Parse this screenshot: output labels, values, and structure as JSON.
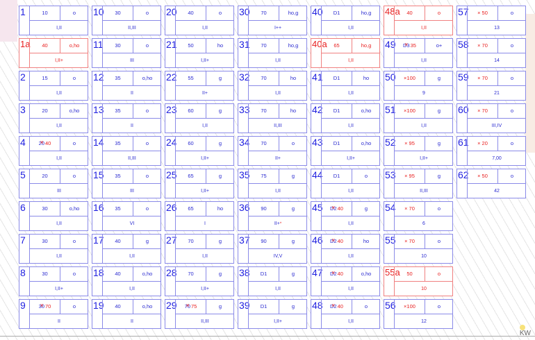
{
  "columns": [
    [
      {
        "num": "1",
        "val": "10",
        "type": "o",
        "cls": "I,II"
      },
      {
        "num": "1a",
        "val": "40",
        "type": "o,ho",
        "cls": "I,II+",
        "red": true
      },
      {
        "num": "2",
        "val": "15",
        "type": "o",
        "cls": "I,II"
      },
      {
        "num": "3",
        "val": "20",
        "type": "o,ho",
        "cls": "I,II"
      },
      {
        "num": "4",
        "old": "20",
        "val": "40",
        "type": "o",
        "cls": "I,II"
      },
      {
        "num": "5",
        "val": "20",
        "type": "o",
        "cls": "III"
      },
      {
        "num": "6",
        "val": "30",
        "type": "o,ho",
        "cls": "I,II"
      },
      {
        "num": "7",
        "val": "30",
        "type": "o",
        "cls": "I,II"
      },
      {
        "num": "8",
        "val": "30",
        "type": "o",
        "cls": "I,II+"
      },
      {
        "num": "9",
        "old": "30",
        "val": "70",
        "type": "o",
        "cls": "II"
      }
    ],
    [
      {
        "num": "10",
        "val": "30",
        "type": "o",
        "cls": "II,III"
      },
      {
        "num": "11",
        "val": "30",
        "type": "o",
        "cls": "III"
      },
      {
        "num": "12",
        "val": "35",
        "type": "o,ho",
        "cls": "II"
      },
      {
        "num": "13",
        "val": "35",
        "type": "o",
        "cls": "II"
      },
      {
        "num": "14",
        "val": "35",
        "type": "o",
        "cls": "II,III"
      },
      {
        "num": "15",
        "val": "35",
        "type": "o",
        "cls": "III"
      },
      {
        "num": "16",
        "val": "35",
        "type": "o",
        "cls": "VI"
      },
      {
        "num": "17",
        "val": "40",
        "type": "g",
        "cls": "I,II"
      },
      {
        "num": "18",
        "val": "40",
        "type": "o,ho",
        "cls": "I,II"
      },
      {
        "num": "19",
        "val": "40",
        "type": "o,ho",
        "cls": "II"
      }
    ],
    [
      {
        "num": "20",
        "val": "40",
        "type": "o",
        "cls": "I,II"
      },
      {
        "num": "21",
        "val": "50",
        "type": "ho",
        "cls": "I,II+"
      },
      {
        "num": "22",
        "val": "55",
        "type": "g",
        "cls": "II+"
      },
      {
        "num": "23",
        "val": "60",
        "type": "g",
        "cls": "I,II"
      },
      {
        "num": "24",
        "val": "60",
        "type": "g",
        "cls": "I,II+"
      },
      {
        "num": "25",
        "val": "65",
        "type": "g",
        "cls": "I,II+"
      },
      {
        "num": "26",
        "val": "65",
        "type": "ho",
        "cls": "I"
      },
      {
        "num": "27",
        "val": "70",
        "type": "g",
        "cls": "I,II"
      },
      {
        "num": "28",
        "val": "70",
        "type": "g",
        "cls": "I,II+"
      },
      {
        "num": "29",
        "old": "70",
        "val": "75",
        "type": "g",
        "cls": "II,III"
      }
    ],
    [
      {
        "num": "30",
        "val": "70",
        "type": "ho,g",
        "cls": "I++"
      },
      {
        "num": "31",
        "val": "70",
        "type": "ho,g",
        "cls": "I,II"
      },
      {
        "num": "32",
        "val": "70",
        "type": "ho",
        "cls": "I,II"
      },
      {
        "num": "33",
        "val": "70",
        "type": "ho",
        "cls": "II,III"
      },
      {
        "num": "34",
        "val": "70",
        "type": "o",
        "cls": "II+"
      },
      {
        "num": "35",
        "val": "75",
        "type": "g",
        "cls": "I,II"
      },
      {
        "num": "36",
        "val": "90",
        "type": "g",
        "cls": "II+",
        "mark": "*"
      },
      {
        "num": "37",
        "val": "90",
        "type": "g",
        "cls": "IV,V"
      },
      {
        "num": "38",
        "val": "D1",
        "type": "g",
        "cls": "I,II"
      },
      {
        "num": "39",
        "val": "D1",
        "type": "g",
        "cls": "I,II+"
      }
    ],
    [
      {
        "num": "40",
        "val": "D1",
        "type": "ho,g",
        "cls": "I,II"
      },
      {
        "num": "40a",
        "val": "65",
        "type": "ho,g",
        "cls": "I,II",
        "red": true
      },
      {
        "num": "41",
        "val": "D1",
        "type": "ho",
        "cls": "I,II"
      },
      {
        "num": "42",
        "val": "D1",
        "type": "o,ho",
        "cls": "I,II"
      },
      {
        "num": "43",
        "val": "D1",
        "type": "o,ho",
        "cls": "I,II+"
      },
      {
        "num": "44",
        "val": "D1",
        "type": "o",
        "cls": "I,II"
      },
      {
        "num": "45",
        "old": "D2",
        "val": "40",
        "type": "g",
        "cls": "I,II"
      },
      {
        "num": "46",
        "old": "D2",
        "val": "40",
        "type": "ho",
        "cls": "I,II"
      },
      {
        "num": "47",
        "old": "D2",
        "val": "40",
        "type": "o,ho",
        "cls": "I,II"
      },
      {
        "num": "48",
        "old": "D2",
        "val": "40",
        "type": "o",
        "cls": "I,II"
      }
    ],
    [
      {
        "num": "48a",
        "val": "40",
        "type": "o",
        "cls": "I,II",
        "red": true
      },
      {
        "num": "49",
        "old": "D3",
        "val": "35",
        "type": "o+",
        "cls": "I,II"
      },
      {
        "num": "50",
        "val": "×100",
        "valRed": true,
        "type": "g",
        "cls": "9"
      },
      {
        "num": "51",
        "val": "×100",
        "valRed": true,
        "type": "g",
        "cls": "I,II"
      },
      {
        "num": "52",
        "val": "× 95",
        "valRed": true,
        "type": "g",
        "cls": "I,II+"
      },
      {
        "num": "53",
        "val": "× 95",
        "valRed": true,
        "type": "g",
        "cls": "II,III"
      },
      {
        "num": "54",
        "val": "× 70",
        "valRed": true,
        "type": "o",
        "cls": "6"
      },
      {
        "num": "55",
        "val": "× 70",
        "valRed": true,
        "type": "o",
        "cls": "10"
      },
      {
        "num": "55a",
        "val": "50",
        "type": "o",
        "cls": "10",
        "red": true
      },
      {
        "num": "56",
        "val": "×100",
        "valRed": true,
        "type": "o",
        "cls": "12"
      }
    ],
    [
      {
        "num": "57",
        "val": "× 50",
        "valRed": true,
        "type": "o",
        "cls": "13"
      },
      {
        "num": "58",
        "val": "× 70",
        "valRed": true,
        "type": "o",
        "cls": "14"
      },
      {
        "num": "59",
        "val": "× 70",
        "valRed": true,
        "type": "o",
        "cls": "21"
      },
      {
        "num": "60",
        "val": "× 70",
        "valRed": true,
        "type": "o",
        "cls": "III,IV"
      },
      {
        "num": "61",
        "val": "× 20",
        "valRed": true,
        "type": "o",
        "cls": "7,00"
      },
      {
        "num": "62",
        "val": "× 50",
        "valRed": true,
        "type": "o",
        "cls": "42"
      }
    ]
  ],
  "logo": "KW"
}
